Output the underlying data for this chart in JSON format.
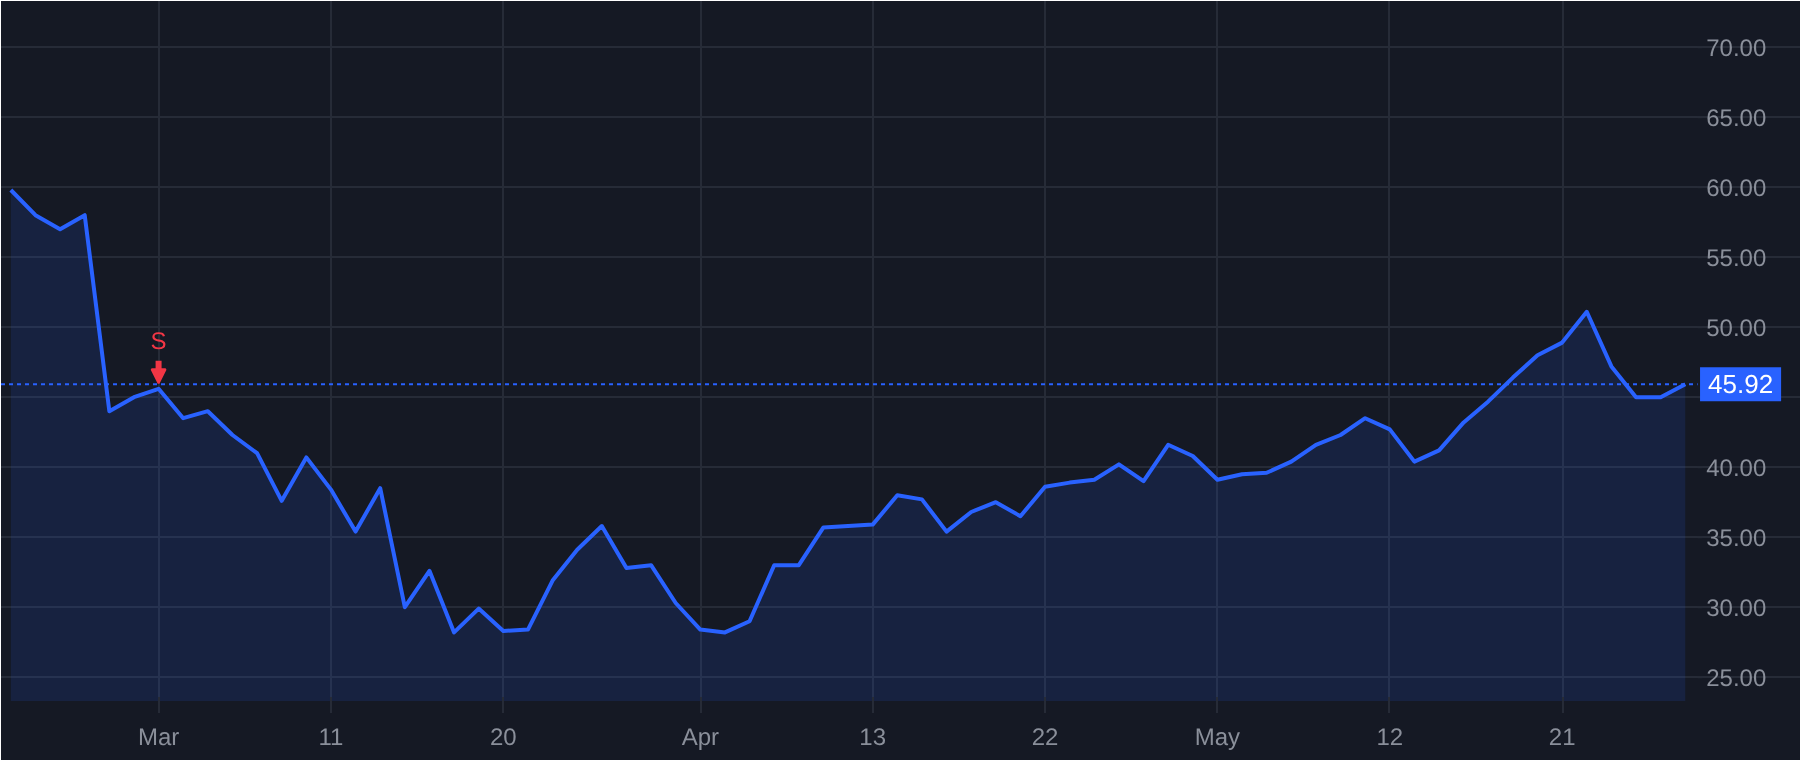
{
  "chart_data": {
    "type": "area",
    "categories": [
      null,
      null,
      null,
      null,
      null,
      null,
      "Mar",
      null,
      null,
      null,
      null,
      null,
      null,
      "11",
      null,
      null,
      null,
      null,
      null,
      null,
      "20",
      null,
      null,
      null,
      null,
      null,
      null,
      null,
      "Apr",
      null,
      null,
      null,
      null,
      null,
      null,
      "13",
      null,
      null,
      null,
      null,
      null,
      null,
      "22",
      null,
      null,
      null,
      null,
      null,
      null,
      "May",
      null,
      null,
      null,
      null,
      null,
      null,
      "12",
      null,
      null,
      null,
      null,
      null,
      null,
      "21",
      null,
      null,
      null,
      null,
      null
    ],
    "series": [
      {
        "color": "#2962ff",
        "values": [
          59.8,
          58.0,
          57.0,
          58.0,
          44.0,
          45.0,
          45.6,
          43.5,
          44.0,
          42.3,
          41.0,
          37.6,
          40.7,
          38.4,
          35.4,
          38.5,
          30.0,
          32.6,
          28.2,
          29.9,
          28.3,
          28.4,
          31.9,
          34.1,
          35.8,
          32.8,
          33.0,
          30.3,
          28.4,
          28.2,
          29.0,
          33.0,
          33.0,
          35.7,
          35.8,
          35.9,
          38.0,
          37.7,
          35.4,
          36.8,
          37.5,
          36.5,
          38.6,
          38.9,
          39.1,
          40.2,
          39.0,
          41.6,
          40.8,
          39.1,
          39.5,
          39.6,
          40.4,
          41.6,
          42.3,
          43.5,
          42.7,
          40.4,
          41.2,
          43.2,
          44.7,
          46.4,
          48.0,
          48.9,
          51.1,
          47.2,
          45.0,
          45.0,
          45.92
        ]
      }
    ],
    "ylim": [
      23.3,
      73.3
    ],
    "yticks": [
      {
        "value": 25,
        "label": "25.00"
      },
      {
        "value": 30,
        "label": "30.00"
      },
      {
        "value": 35,
        "label": "35.00"
      },
      {
        "value": 40,
        "label": "40.00"
      },
      {
        "value": 45,
        "label": null
      },
      {
        "value": 50,
        "label": "50.00"
      },
      {
        "value": 55,
        "label": "55.00"
      },
      {
        "value": 60,
        "label": "60.00"
      },
      {
        "value": 65,
        "label": "65.00"
      },
      {
        "value": 70,
        "label": "70.00"
      }
    ],
    "ref_lines": [
      {
        "axis": "y",
        "value": 45.92,
        "label": "45.92",
        "color": "#2962ff",
        "line_style": "dotted"
      }
    ],
    "annotations": [
      {
        "text": "S",
        "x": "Mar",
        "y": 45.6
      }
    ],
    "grid": true
  }
}
